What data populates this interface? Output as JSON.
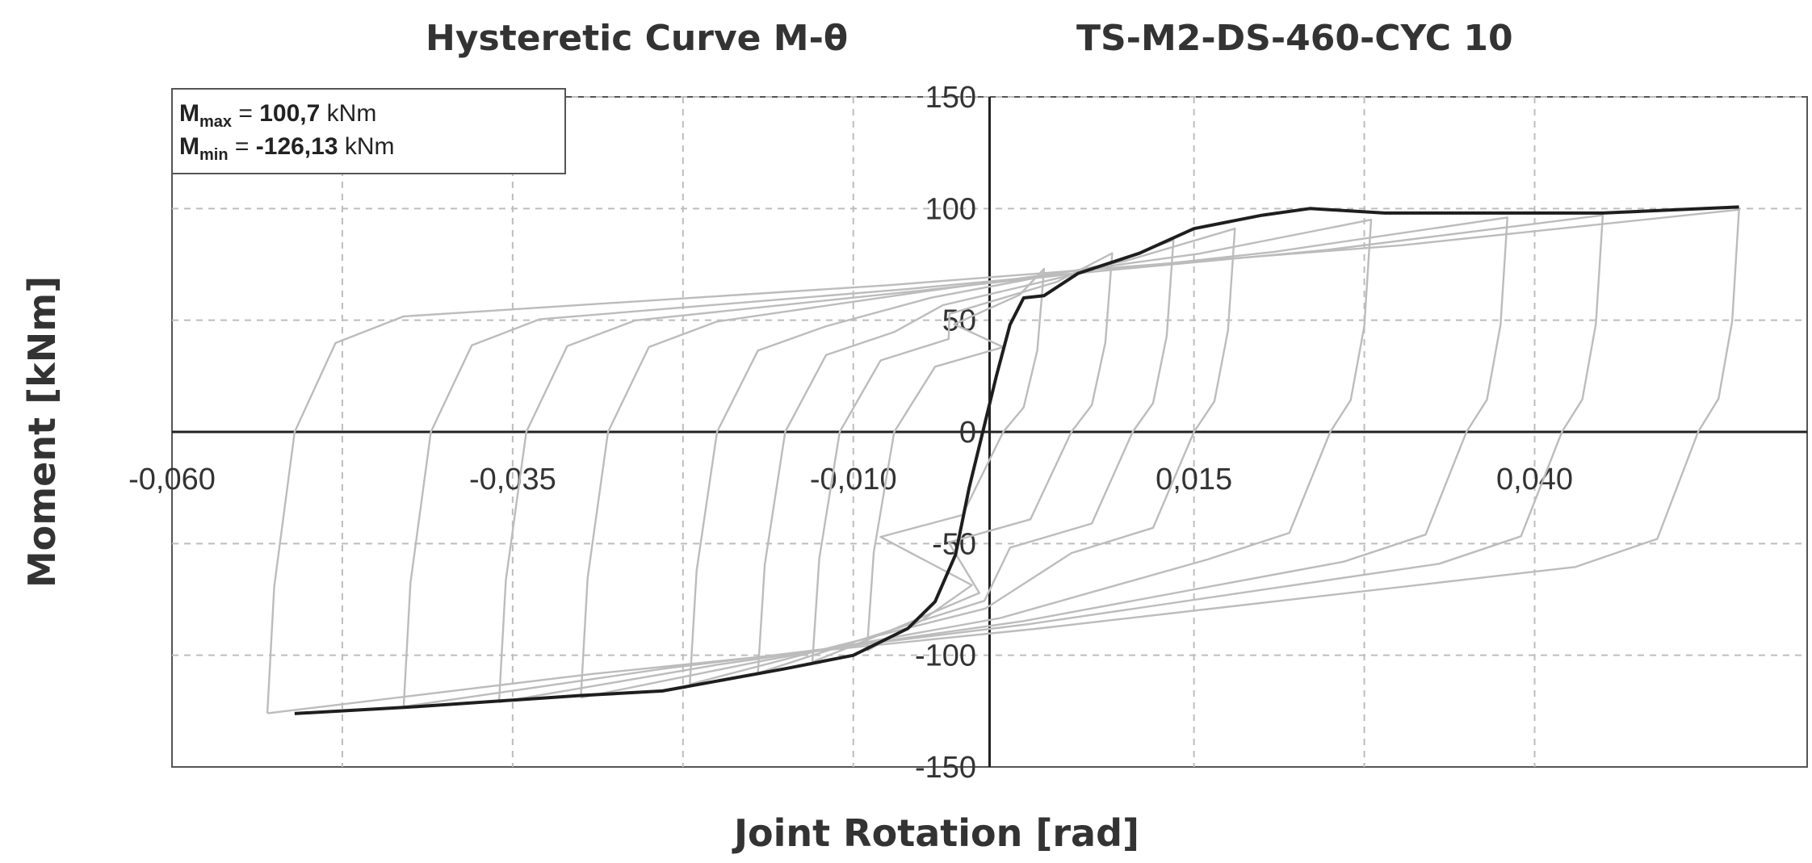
{
  "chart_data": {
    "type": "line",
    "title": "Hysteretic Curve M-θ",
    "subtitle": "TS-M2-DS-460-CYC 10",
    "xlabel": "Joint Rotation [rad]",
    "ylabel": "Moment [kNm]",
    "xlim": [
      -0.06,
      0.06
    ],
    "ylim": [
      -150,
      150
    ],
    "xticks": [
      -0.06,
      -0.035,
      -0.01,
      0.015,
      0.04
    ],
    "xtick_labels": [
      "-0,060",
      "-0,035",
      "-0,010",
      "0,015",
      "0,040"
    ],
    "yticks": [
      -150,
      -100,
      -50,
      0,
      50,
      100,
      150
    ],
    "ytick_labels": [
      "-150",
      "-100",
      "-50",
      "0",
      "50",
      "100",
      "150"
    ],
    "grid": true,
    "annotation": {
      "max_label": "M",
      "max_sub": "max",
      "max_eq": " = ",
      "max_value": "100,7",
      "max_unit": " kNm",
      "min_label": "M",
      "min_sub": "min",
      "min_eq": " = ",
      "min_value": "-126,13",
      "min_unit": " kNm"
    },
    "colors": {
      "envelope": "#1e1e1e",
      "loops": "#bcbcbc"
    },
    "series": [
      {
        "values": [
          [
            -0.051,
            -126.1
          ],
          [
            -0.042,
            -123.0
          ],
          [
            -0.03,
            -118.0
          ],
          [
            -0.024,
            -116.0
          ],
          [
            -0.015,
            -106.0
          ],
          [
            -0.01,
            -100.0
          ],
          [
            -0.006,
            -88.0
          ],
          [
            -0.004,
            -76.0
          ],
          [
            -0.0025,
            -55.0
          ],
          [
            -0.0015,
            -25.0
          ],
          [
            -0.0005,
            0.0
          ],
          [
            0.0005,
            25.0
          ],
          [
            0.0015,
            48.0
          ],
          [
            0.0025,
            60.0
          ],
          [
            0.004,
            61.0
          ],
          [
            0.0065,
            71.0
          ],
          [
            0.011,
            80.0
          ],
          [
            0.015,
            91.0
          ],
          [
            0.02,
            97.0
          ],
          [
            0.0235,
            100.0
          ],
          [
            0.029,
            98.0
          ],
          [
            0.045,
            98.0
          ],
          [
            0.055,
            100.7
          ]
        ]
      },
      {
        "loops": [
          {
            "min": [
              -0.009,
              -98.0
            ],
            "max": [
              0.004,
              73.0
            ]
          },
          {
            "min": [
              -0.013,
              -103.0
            ],
            "max": [
              0.009,
              80.0
            ]
          },
          {
            "min": [
              -0.017,
              -108.0
            ],
            "max": [
              0.0135,
              86.0
            ]
          },
          {
            "min": [
              -0.022,
              -113.0
            ],
            "max": [
              0.018,
              91.0
            ]
          },
          {
            "min": [
              -0.03,
              -119.0
            ],
            "max": [
              0.028,
              95.0
            ]
          },
          {
            "min": [
              -0.036,
              -121.0
            ],
            "max": [
              0.038,
              96.0
            ]
          },
          {
            "min": [
              -0.043,
              -123.0
            ],
            "max": [
              0.045,
              97.0
            ]
          },
          {
            "min": [
              -0.053,
              -126.0
            ],
            "max": [
              0.055,
              99.5
            ]
          }
        ]
      }
    ]
  }
}
